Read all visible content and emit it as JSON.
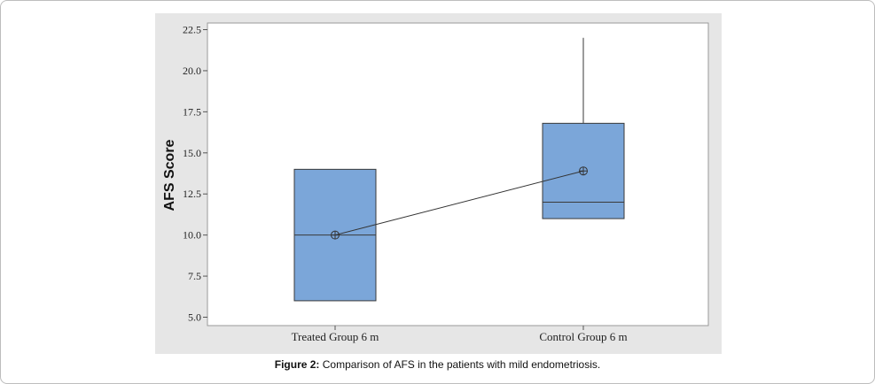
{
  "caption": {
    "label": "Figure 2:",
    "text": " Comparison of AFS in the patients with mild endometriosis."
  },
  "colors": {
    "box_fill": "#7ba6d9",
    "box_stroke": "#3a3a3a",
    "plot_bg": "#ffffff",
    "chart_bg": "#e6e6e6"
  },
  "chart_data": {
    "type": "boxplot",
    "title": "",
    "xlabel": "",
    "ylabel": "AFS Score",
    "ylim": [
      5.0,
      22.5
    ],
    "yticks": [
      "5.0",
      "7.5",
      "10.0",
      "12.5",
      "15.0",
      "17.5",
      "20.0",
      "22.5"
    ],
    "ytick_values": [
      5.0,
      7.5,
      10.0,
      12.5,
      15.0,
      17.5,
      20.0,
      22.5
    ],
    "categories": [
      "Treated Group 6 m",
      "Control Group 6 m"
    ],
    "boxes": [
      {
        "category": "Treated Group 6 m",
        "q1": 6.0,
        "median": 10.0,
        "q3": 14.0,
        "whisker_low": 6.0,
        "whisker_high": 14.0,
        "mean": 10.0
      },
      {
        "category": "Control Group 6 m",
        "q1": 11.0,
        "median": 12.0,
        "q3": 16.8,
        "whisker_low": 11.0,
        "whisker_high": 22.0,
        "mean": 13.9
      }
    ],
    "mean_connect_line": true,
    "grid": false
  }
}
